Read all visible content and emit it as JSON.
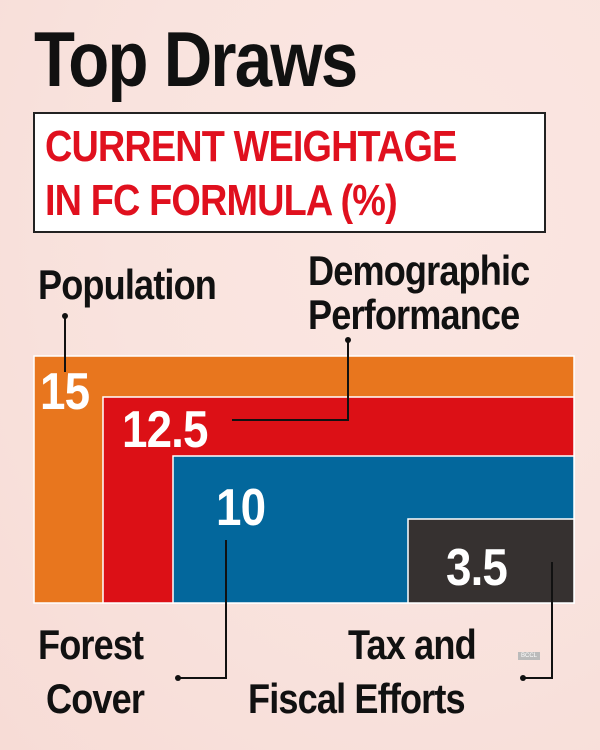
{
  "title": "Top Draws",
  "subtitle": [
    "CURRENT WEIGHTAGE",
    "IN FC FORMULA (%)"
  ],
  "watermark": "BCCL",
  "chart_data": {
    "type": "nested-rectangles",
    "title": "Current weightage in FC formula (%)",
    "categories": [
      "Population",
      "Demographic Performance",
      "Forest Cover",
      "Tax and Fiscal Efforts"
    ],
    "values": [
      15,
      12.5,
      10,
      3.5
    ],
    "value_labels": [
      "15",
      "12.5",
      "10",
      "3.5"
    ],
    "colors": [
      "#e8761e",
      "#dc1016",
      "#03679c",
      "#363130"
    ],
    "label_lines": [
      [
        "Population"
      ],
      [
        "Demographic",
        "Performance"
      ],
      [
        "Forest",
        "Cover"
      ],
      [
        "Tax and",
        "Fiscal Efforts"
      ]
    ]
  }
}
